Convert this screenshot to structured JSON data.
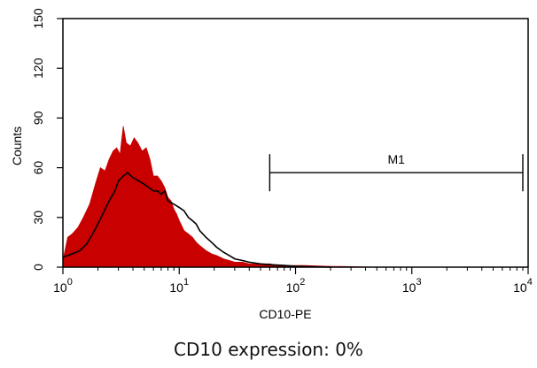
{
  "caption": "CD10 expression: 0%",
  "chart_data": {
    "type": "area",
    "title": "",
    "xlabel": "CD10-PE",
    "ylabel": "Counts",
    "x_scale": "log",
    "xlim": [
      1,
      10000
    ],
    "ylim": [
      0,
      150
    ],
    "x_ticks": [
      {
        "value": 1,
        "base": "10",
        "exp": "0"
      },
      {
        "value": 10,
        "base": "10",
        "exp": "1"
      },
      {
        "value": 100,
        "base": "10",
        "exp": "2"
      },
      {
        "value": 1000,
        "base": "10",
        "exp": "3"
      },
      {
        "value": 10000,
        "base": "10",
        "exp": "4"
      }
    ],
    "y_ticks": [
      "0",
      "30",
      "60",
      "90",
      "120",
      "150"
    ],
    "grid": false,
    "colors": {
      "filled": "#c80000",
      "outline": "#000000",
      "marker": "#000000"
    },
    "series": [
      {
        "style": "filled",
        "x": [
          1.0,
          1.1,
          1.2,
          1.35,
          1.5,
          1.7,
          1.9,
          2.1,
          2.3,
          2.5,
          2.7,
          2.9,
          3.1,
          3.3,
          3.5,
          3.8,
          4.1,
          4.4,
          4.8,
          5.2,
          5.6,
          6.0,
          6.5,
          7.0,
          7.5,
          8.0,
          8.5,
          9.0,
          9.5,
          10.0,
          11.0,
          12.0,
          13.0,
          14.0,
          15.0,
          17.0,
          19.0,
          21.0,
          24.0,
          27.0,
          30.0,
          35.0,
          40.0,
          50.0,
          60.0,
          70.0,
          90.0,
          120.0,
          200.0,
          300.0,
          500.0
        ],
        "y": [
          4,
          18,
          20,
          24,
          30,
          38,
          50,
          60,
          58,
          65,
          70,
          72,
          68,
          85,
          75,
          73,
          78,
          75,
          70,
          72,
          65,
          55,
          55,
          52,
          48,
          42,
          40,
          35,
          32,
          28,
          22,
          20,
          18,
          15,
          13,
          10,
          8,
          7,
          5,
          4,
          3,
          3,
          2,
          2,
          2,
          1,
          1,
          1,
          0.5,
          0.3,
          0
        ]
      },
      {
        "style": "outline",
        "x": [
          1.0,
          1.2,
          1.4,
          1.6,
          1.8,
          2.0,
          2.2,
          2.5,
          2.8,
          3.0,
          3.3,
          3.6,
          4.0,
          4.5,
          5.0,
          5.5,
          6.0,
          6.5,
          7.0,
          7.5,
          8.0,
          9.0,
          10.0,
          11.0,
          12.0,
          13.0,
          14.0,
          15.0,
          17.0,
          19.0,
          21.0,
          24.0,
          27.0,
          30.0,
          35.0,
          40.0,
          50.0,
          60.0,
          80.0,
          100.0,
          200.0
        ],
        "y": [
          6,
          8,
          10,
          14,
          20,
          26,
          32,
          40,
          46,
          52,
          55,
          57,
          54,
          52,
          50,
          48,
          46,
          46,
          44,
          46,
          40,
          38,
          36,
          34,
          30,
          28,
          26,
          22,
          18,
          15,
          12,
          9,
          7,
          5,
          4,
          3,
          2,
          1.5,
          1,
          0.5,
          0
        ]
      }
    ],
    "markers": [
      {
        "label": "M1",
        "x_start": 60,
        "x_end": 9000,
        "y": 57
      }
    ]
  }
}
